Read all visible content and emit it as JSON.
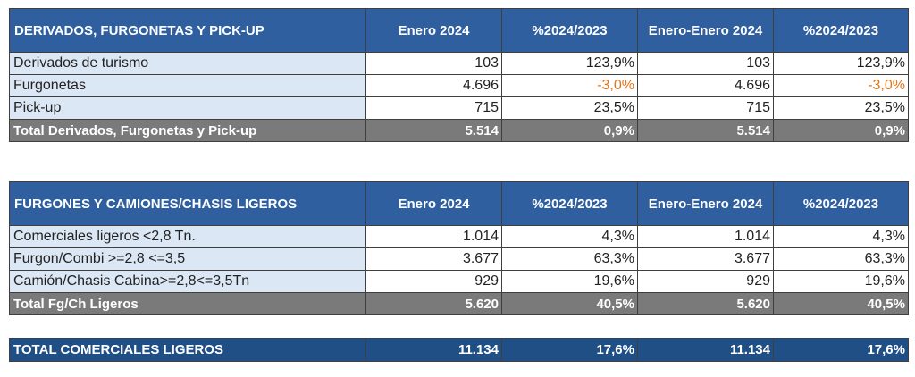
{
  "section1": {
    "title": "DERIVADOS, FURGONETAS Y PICK-UP",
    "headers": [
      "Enero 2024",
      "%2024/2023",
      "Enero-Enero 2024",
      "%2024/2023"
    ],
    "rows": [
      {
        "label": "Derivados de turismo",
        "v1": "103",
        "p1": "123,9%",
        "v2": "103",
        "p2": "123,9%"
      },
      {
        "label": "Furgonetas",
        "v1": "4.696",
        "p1": "-3,0%",
        "v2": "4.696",
        "p2": "-3,0%"
      },
      {
        "label": "Pick-up",
        "v1": "715",
        "p1": "23,5%",
        "v2": "715",
        "p2": "23,5%"
      }
    ],
    "total": {
      "label": "Total Derivados, Furgonetas y Pick-up",
      "v1": "5.514",
      "p1": "0,9%",
      "v2": "5.514",
      "p2": "0,9%"
    }
  },
  "section2": {
    "title": "FURGONES Y CAMIONES/CHASIS LIGEROS",
    "headers": [
      "Enero 2024",
      "%2024/2023",
      "Enero-Enero 2024",
      "%2024/2023"
    ],
    "rows": [
      {
        "label": "Comerciales ligeros <2,8 Tn.",
        "v1": "1.014",
        "p1": "4,3%",
        "v2": "1.014",
        "p2": "4,3%"
      },
      {
        "label": "Furgon/Combi >=2,8 <=3,5",
        "v1": "3.677",
        "p1": "63,3%",
        "v2": "3.677",
        "p2": "63,3%"
      },
      {
        "label": "Camión/Chasis Cabina>=2,8<=3,5Tn",
        "v1": "929",
        "p1": "19,6%",
        "v2": "929",
        "p2": "19,6%"
      }
    ],
    "total": {
      "label": "Total Fg/Ch Ligeros",
      "v1": "5.620",
      "p1": "40,5%",
      "v2": "5.620",
      "p2": "40,5%"
    }
  },
  "grand_total": {
    "label": "TOTAL COMERCIALES LIGEROS",
    "v1": "11.134",
    "p1": "17,6%",
    "v2": "11.134",
    "p2": "17,6%"
  },
  "colors": {
    "header_blue": "#2f5f9e",
    "label_bg": "#dbe7f4",
    "total_gray": "#7a7a7a",
    "grand_blue": "#204f86",
    "negative_orange": "#e0761b"
  }
}
